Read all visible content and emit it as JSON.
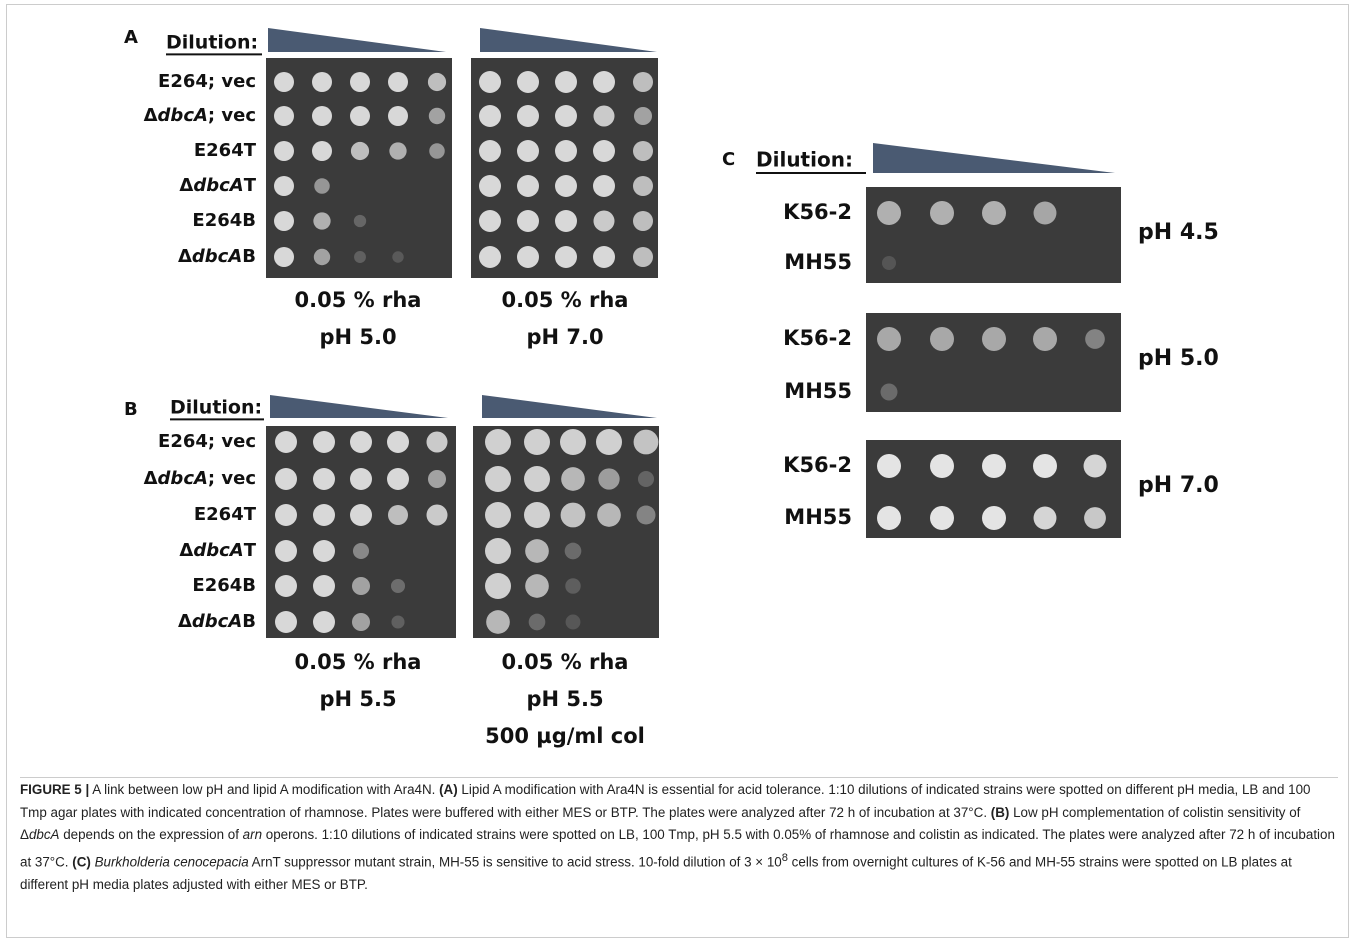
{
  "panel_a": {
    "letter": "A",
    "dilution": "Dilution:",
    "rows": [
      "E264; vec",
      "ΔdbcA; vec",
      "E264T",
      "ΔdbcAT",
      "E264B",
      "ΔdbcAB"
    ],
    "plates": [
      {
        "lines": [
          "0.05 % rha",
          "pH 5.0"
        ]
      },
      {
        "lines": [
          "0.05 % rha",
          "pH 7.0"
        ]
      }
    ]
  },
  "panel_b": {
    "letter": "B",
    "dilution": "Dilution:",
    "rows": [
      "E264; vec",
      "ΔdbcA; vec",
      "E264T",
      "ΔdbcAT",
      "E264B",
      "ΔdbcAB"
    ],
    "plates": [
      {
        "lines": [
          "0.05 % rha",
          "pH 5.5"
        ]
      },
      {
        "lines": [
          "0.05 % rha",
          "pH 5.5",
          "500 µg/ml col"
        ]
      }
    ]
  },
  "panel_c": {
    "letter": "C",
    "dilution": "Dilution:",
    "plates": [
      {
        "rows": [
          "K56-2",
          "MH55"
        ],
        "ph": "pH 4.5"
      },
      {
        "rows": [
          "K56-2",
          "MH55"
        ],
        "ph": "pH 5.0"
      },
      {
        "rows": [
          "K56-2",
          "MH55"
        ],
        "ph": "pH 7.0"
      }
    ]
  },
  "caption": {
    "runs": [
      "FIGURE 5 |",
      "A link between low pH and lipid A modification with Ara4N.",
      "(A)",
      "Lipid A modification with Ara4N is essential for acid tolerance. 1:10 dilutions of indicated strains were spotted on different pH media, LB and 100 Tmp agar plates with indicated concentration of rhamnose. Plates were buffered with either MES or BTP. The plates were analyzed after 72 h of incubation at 37°C.",
      "(B)",
      "Low pH complementation of colistin sensitivity of Δ",
      "dbcA",
      "depends on the expression of",
      "arn",
      "operons. 1:10 dilutions of indicated strains were spotted on LB, 100 Tmp, pH 5.5 with 0.05% of rhamnose and colistin as indicated. The plates were analyzed after 72 h of incubation at 37°C.",
      "(C)",
      "Burkholderia cenocepacia",
      "ArnT suppressor mutant strain, MH-55 is sensitive to acid stress. 10-fold dilution of 3 × 10",
      "8",
      "cells from overnight cultures of K-56 and MH-55 strains were spotted on LB plates at different pH media plates adjusted with either MES or BTP."
    ]
  }
}
